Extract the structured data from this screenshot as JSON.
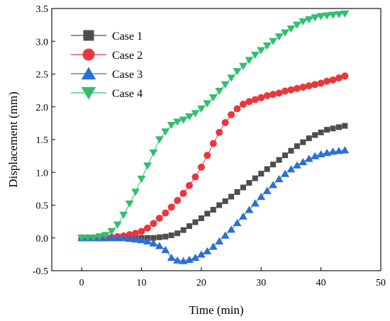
{
  "chart_data": {
    "type": "line",
    "xlabel": "Time (min)",
    "ylabel": "Displacement (mm)",
    "xlim": [
      -5,
      50
    ],
    "ylim": [
      -0.5,
      3.5
    ],
    "xticks": [
      0,
      10,
      20,
      30,
      40,
      50
    ],
    "yticks": [
      -0.5,
      0.0,
      0.5,
      1.0,
      1.5,
      2.0,
      2.5,
      3.0,
      3.5
    ],
    "grid": false,
    "legend_position": "top-left",
    "x": [
      0,
      1,
      2,
      3,
      4,
      5,
      6,
      7,
      8,
      9,
      10,
      11,
      12,
      13,
      14,
      15,
      16,
      17,
      18,
      19,
      20,
      21,
      22,
      23,
      24,
      25,
      26,
      27,
      28,
      29,
      30,
      31,
      32,
      33,
      34,
      35,
      36,
      37,
      38,
      39,
      40,
      41,
      42,
      43,
      44
    ],
    "series": [
      {
        "name": "Case 1",
        "color": "#4d4d4d",
        "marker": "square",
        "values": [
          0.0,
          0.0,
          0.0,
          0.0,
          0.0,
          0.0,
          0.0,
          0.0,
          0.0,
          0.0,
          0.0,
          0.0,
          0.0,
          0.01,
          0.02,
          0.04,
          0.07,
          0.12,
          0.18,
          0.24,
          0.3,
          0.37,
          0.43,
          0.5,
          0.56,
          0.63,
          0.7,
          0.77,
          0.84,
          0.91,
          0.98,
          1.05,
          1.12,
          1.19,
          1.26,
          1.33,
          1.4,
          1.46,
          1.52,
          1.57,
          1.61,
          1.65,
          1.67,
          1.69,
          1.71
        ]
      },
      {
        "name": "Case 2",
        "color": "#e8383d",
        "marker": "circle",
        "values": [
          0.0,
          0.0,
          0.0,
          0.0,
          0.0,
          0.01,
          0.02,
          0.03,
          0.05,
          0.07,
          0.1,
          0.15,
          0.22,
          0.3,
          0.38,
          0.47,
          0.57,
          0.68,
          0.8,
          0.93,
          1.08,
          1.26,
          1.44,
          1.61,
          1.76,
          1.88,
          1.97,
          2.04,
          2.08,
          2.11,
          2.14,
          2.17,
          2.19,
          2.21,
          2.24,
          2.26,
          2.28,
          2.3,
          2.32,
          2.34,
          2.36,
          2.39,
          2.41,
          2.44,
          2.47
        ]
      },
      {
        "name": "Case 3",
        "color": "#2a6fd6",
        "marker": "triangle-up",
        "values": [
          0.0,
          0.0,
          0.0,
          0.0,
          0.0,
          0.0,
          0.0,
          0.0,
          -0.01,
          -0.02,
          -0.03,
          -0.05,
          -0.08,
          -0.12,
          -0.18,
          -0.3,
          -0.34,
          -0.35,
          -0.33,
          -0.3,
          -0.25,
          -0.2,
          -0.13,
          -0.05,
          0.04,
          0.13,
          0.23,
          0.33,
          0.43,
          0.53,
          0.63,
          0.72,
          0.81,
          0.9,
          0.98,
          1.05,
          1.11,
          1.16,
          1.21,
          1.25,
          1.28,
          1.3,
          1.32,
          1.33,
          1.34
        ]
      },
      {
        "name": "Case 4",
        "color": "#2fbf71",
        "marker": "triangle-down",
        "values": [
          0.0,
          0.0,
          0.0,
          0.02,
          0.04,
          0.1,
          0.2,
          0.35,
          0.52,
          0.7,
          0.9,
          1.1,
          1.3,
          1.5,
          1.62,
          1.72,
          1.77,
          1.8,
          1.85,
          1.9,
          1.97,
          2.05,
          2.14,
          2.24,
          2.34,
          2.44,
          2.54,
          2.62,
          2.71,
          2.79,
          2.86,
          2.93,
          3.0,
          3.07,
          3.13,
          3.19,
          3.25,
          3.3,
          3.33,
          3.36,
          3.38,
          3.39,
          3.4,
          3.41,
          3.42
        ]
      }
    ]
  }
}
